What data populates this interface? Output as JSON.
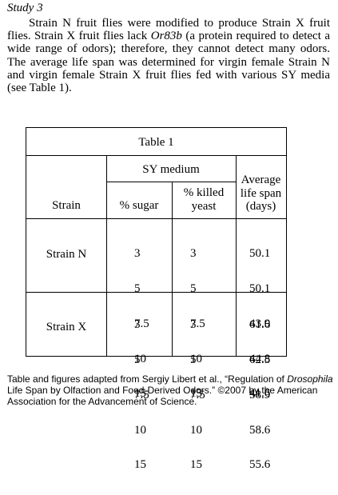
{
  "study": {
    "heading": "Study 3",
    "passage_before_gene": "Strain N fruit flies were modified to produce Strain X fruit flies. Strain X fruit flies lack ",
    "gene": "Or83b",
    "passage_after_gene": " (a protein required to detect a wide range of odors); therefore, they cannot detect many odors. The average life span was determined for virgin female Strain N and virgin female Strain X fruit flies fed with various SY media (see Table 1)."
  },
  "table": {
    "title": "Table 1",
    "group_header": "SY medium",
    "headers": {
      "strain": "Strain",
      "sugar": "% sugar",
      "killed_yeast": [
        "% killed",
        "yeast"
      ],
      "life_span": [
        "Average",
        "life span",
        "(days)"
      ]
    },
    "groups": [
      {
        "strain": "Strain N",
        "sugar": [
          "3",
          "5",
          "7.5",
          "10",
          "15"
        ],
        "yeast": [
          "3",
          "5",
          "7.5",
          "10",
          "15"
        ],
        "life_span": [
          "50.1",
          "50.1",
          "43.9",
          "44.8",
          "41.6"
        ]
      },
      {
        "strain": "Strain X",
        "sugar": [
          "3",
          "5",
          "7.5",
          "10",
          "15"
        ],
        "yeast": [
          "3",
          "5",
          "7.5",
          "10",
          "15"
        ],
        "life_span": [
          "61.6",
          "62.5",
          "58.9",
          "58.6",
          "55.6"
        ]
      }
    ]
  },
  "credit": {
    "before_title": "Table and figures adapted from Sergiy Libert et al., “Regulation of ",
    "title_italic": "Drosophila",
    "after_title": " Life Span by Olfaction and Food-Derived Odors.” ©2007 by the American Association for the Advancement of Science."
  }
}
